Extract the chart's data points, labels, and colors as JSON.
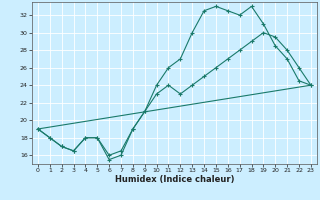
{
  "title": "",
  "xlabel": "Humidex (Indice chaleur)",
  "bg_color": "#cceeff",
  "grid_color": "#ffffff",
  "line_color": "#1a7a6a",
  "xlim": [
    -0.5,
    23.5
  ],
  "ylim": [
    15.0,
    33.5
  ],
  "xticks": [
    0,
    1,
    2,
    3,
    4,
    5,
    6,
    7,
    8,
    9,
    10,
    11,
    12,
    13,
    14,
    15,
    16,
    17,
    18,
    19,
    20,
    21,
    22,
    23
  ],
  "yticks": [
    16,
    18,
    20,
    22,
    24,
    26,
    28,
    30,
    32
  ],
  "line1_x": [
    0,
    1,
    2,
    3,
    4,
    5,
    6,
    7,
    8,
    9,
    10,
    11,
    12,
    13,
    14,
    15,
    16,
    17,
    18,
    19,
    20,
    21,
    22,
    23
  ],
  "line1_y": [
    19,
    18,
    17,
    16.5,
    18,
    18,
    15.5,
    16,
    19,
    21,
    24,
    26,
    27,
    30,
    32.5,
    33,
    32.5,
    32,
    33,
    31,
    28.5,
    27,
    24.5,
    24
  ],
  "line2_x": [
    0,
    1,
    2,
    3,
    4,
    5,
    6,
    7,
    8,
    9,
    10,
    11,
    12,
    13,
    14,
    15,
    16,
    17,
    18,
    19,
    20,
    21,
    22,
    23
  ],
  "line2_y": [
    19,
    18,
    17,
    16.5,
    18,
    18,
    16,
    16.5,
    19,
    21,
    23,
    24,
    23,
    24,
    25,
    26,
    27,
    28,
    29,
    30,
    29.5,
    28,
    26,
    24
  ],
  "line3_x": [
    0,
    23
  ],
  "line3_y": [
    19,
    24
  ],
  "xlabel_fontsize": 6,
  "tick_fontsize": 4.5,
  "linewidth": 0.8,
  "marker_size": 3
}
